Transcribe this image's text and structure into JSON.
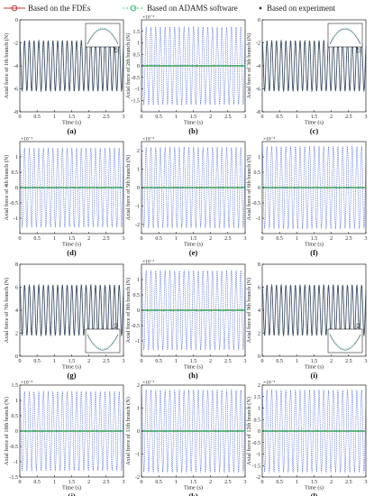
{
  "legend": {
    "items": [
      {
        "label": "Based on the FDEs",
        "color": "#c0392b",
        "marker": "circle"
      },
      {
        "label": "Based on ADAMS software",
        "color": "#2ecc71",
        "marker": "circle-dash"
      },
      {
        "label": "Based on experiment",
        "color": "#333333",
        "marker": "dot"
      }
    ]
  },
  "colors": {
    "fdes": "#c0392b",
    "adams": "#27ae60",
    "experiment": "#1f2a6b",
    "blue_dashed": "#3b5bdb"
  },
  "chart_data": [
    {
      "type": "line",
      "panel": "(a)",
      "ylabel": "Axial force of 1th branch (N)",
      "xlabel": "Time (s)",
      "xlim": [
        0,
        3
      ],
      "ylim": [
        -8,
        0
      ],
      "xticks": [
        0,
        0.5,
        1,
        1.5,
        2,
        2.5,
        3
      ],
      "yticks": [
        -8,
        -6,
        -4,
        -2,
        0
      ],
      "ytick_labels": [
        "-8",
        "-6",
        "-4",
        "-2",
        "0"
      ],
      "scale_label": "",
      "signal": {
        "mean": -4,
        "amp": 2.2,
        "freq": 7.3,
        "flat": false
      },
      "inset": true,
      "inset_pos": "top-right"
    },
    {
      "type": "line",
      "panel": "(b)",
      "ylabel": "Axial force of 2th branch (N)",
      "xlabel": "Time (s)",
      "xlim": [
        0,
        3
      ],
      "ylim": [
        -2,
        2
      ],
      "xticks": [
        0,
        0.5,
        1,
        1.5,
        2,
        2.5,
        3
      ],
      "yticks": [
        -1.5,
        -1,
        -0.5,
        0,
        0.5,
        1,
        1.5
      ],
      "ytick_labels": [
        "-1.5",
        "-1",
        "-0.5",
        "0",
        "0.5",
        "1",
        "1.5"
      ],
      "scale_label": "×10⁻³",
      "signal": {
        "mean": 0,
        "amp": 1.7,
        "freq": 7.3,
        "flat": true
      },
      "inset": false
    },
    {
      "type": "line",
      "panel": "(c)",
      "ylabel": "Axial force of 3th branch (N)",
      "xlabel": "Time (s)",
      "xlim": [
        0,
        3
      ],
      "ylim": [
        -8,
        0
      ],
      "xticks": [
        0,
        0.5,
        1,
        1.5,
        2,
        2.5,
        3
      ],
      "yticks": [
        -8,
        -6,
        -4,
        -2,
        0
      ],
      "ytick_labels": [
        "-8",
        "-6",
        "-4",
        "-2",
        "0"
      ],
      "scale_label": "",
      "signal": {
        "mean": -4,
        "amp": 2.2,
        "freq": 7.3,
        "flat": false
      },
      "inset": true,
      "inset_pos": "top-right"
    },
    {
      "type": "line",
      "panel": "(d)",
      "ylabel": "Axial force of 4th branch (N)",
      "xlabel": "Time (s)",
      "xlim": [
        0,
        3
      ],
      "ylim": [
        -1.5,
        1.5
      ],
      "xticks": [
        0,
        0.5,
        1,
        1.5,
        2,
        2.5,
        3
      ],
      "yticks": [
        -1,
        -0.5,
        0,
        0.5,
        1
      ],
      "ytick_labels": [
        "-1",
        "-0.5",
        "0",
        "0.5",
        "1"
      ],
      "scale_label": "×10⁻³",
      "signal": {
        "mean": 0,
        "amp": 1.3,
        "freq": 7.3,
        "flat": true
      },
      "inset": false
    },
    {
      "type": "line",
      "panel": "(e)",
      "ylabel": "Axial force of 5th branch (N)",
      "xlabel": "Time (s)",
      "xlim": [
        0,
        3
      ],
      "ylim": [
        -2.5,
        2.5
      ],
      "xticks": [
        0,
        0.5,
        1,
        1.5,
        2,
        2.5,
        3
      ],
      "yticks": [
        -2,
        -1,
        0,
        1,
        2
      ],
      "ytick_labels": [
        "-2",
        "-1",
        "0",
        "1",
        "2"
      ],
      "scale_label": "×10⁻³",
      "signal": {
        "mean": 0,
        "amp": 2.2,
        "freq": 7.3,
        "flat": true
      },
      "inset": false
    },
    {
      "type": "line",
      "panel": "(f)",
      "ylabel": "Axial force of 6th branch (N)",
      "xlabel": "Time (s)",
      "xlim": [
        0,
        3
      ],
      "ylim": [
        -1.5,
        1.5
      ],
      "xticks": [
        0,
        0.5,
        1,
        1.5,
        2,
        2.5,
        3
      ],
      "yticks": [
        -1,
        -0.5,
        0,
        0.5,
        1
      ],
      "ytick_labels": [
        "-1",
        "-0.5",
        "0",
        "0.5",
        "1"
      ],
      "scale_label": "×10⁻³",
      "signal": {
        "mean": 0,
        "amp": 1.35,
        "freq": 7.3,
        "flat": true
      },
      "inset": false
    },
    {
      "type": "line",
      "panel": "(g)",
      "ylabel": "Axial force of 7th branch (N)",
      "xlabel": "Time (s)",
      "xlim": [
        0,
        3
      ],
      "ylim": [
        0,
        8
      ],
      "xticks": [
        0,
        0.5,
        1,
        1.5,
        2,
        2.5,
        3
      ],
      "yticks": [
        0,
        2,
        4,
        6,
        8
      ],
      "ytick_labels": [
        "0",
        "2",
        "4",
        "6",
        "8"
      ],
      "scale_label": "",
      "signal": {
        "mean": 4,
        "amp": 2.2,
        "freq": 7.3,
        "flat": false
      },
      "inset": true,
      "inset_pos": "bottom-right"
    },
    {
      "type": "line",
      "panel": "(h)",
      "ylabel": "Axial force of 8th branch (N)",
      "xlabel": "Time (s)",
      "xlim": [
        0,
        3
      ],
      "ylim": [
        -1.5,
        1.5
      ],
      "xticks": [
        0,
        0.5,
        1,
        1.5,
        2,
        2.5,
        3
      ],
      "yticks": [
        -1,
        -0.5,
        0,
        0.5,
        1
      ],
      "ytick_labels": [
        "-1",
        "-0.5",
        "0",
        "0.5",
        "1"
      ],
      "scale_label": "×10⁻³",
      "signal": {
        "mean": 0,
        "amp": 1.3,
        "freq": 7.3,
        "flat": true
      },
      "inset": false
    },
    {
      "type": "line",
      "panel": "(i)",
      "ylabel": "Axial force of 9th branch (N)",
      "xlabel": "Time (s)",
      "xlim": [
        0,
        3
      ],
      "ylim": [
        0,
        8
      ],
      "xticks": [
        0,
        0.5,
        1,
        1.5,
        2,
        2.5,
        3
      ],
      "yticks": [
        0,
        2,
        4,
        6,
        8
      ],
      "ytick_labels": [
        "0",
        "2",
        "4",
        "6",
        "8"
      ],
      "scale_label": "",
      "signal": {
        "mean": 4,
        "amp": 2.2,
        "freq": 7.3,
        "flat": false
      },
      "inset": true,
      "inset_pos": "bottom-right"
    },
    {
      "type": "line",
      "panel": "(j)",
      "ylabel": "Axial force of 10th branch (N)",
      "xlabel": "Time (s)",
      "xlim": [
        0,
        3
      ],
      "ylim": [
        -1.5,
        1.5
      ],
      "xticks": [
        0,
        0.5,
        1,
        1.5,
        2,
        2.5,
        3
      ],
      "yticks": [
        -1.5,
        -1,
        -0.5,
        0,
        0.5,
        1,
        1.5
      ],
      "ytick_labels": [
        "-1.5",
        "-1",
        "-0.5",
        "0",
        "0.5",
        "1",
        "1.5"
      ],
      "scale_label": "×10⁻³",
      "signal": {
        "mean": 0,
        "amp": 1.3,
        "freq": 7.3,
        "flat": true
      },
      "inset": false
    },
    {
      "type": "line",
      "panel": "(k)",
      "ylabel": "Axial force of 11th branch (N)",
      "xlabel": "Time (s)",
      "xlim": [
        0,
        3
      ],
      "ylim": [
        -2,
        2
      ],
      "xticks": [
        0,
        0.5,
        1,
        1.5,
        2,
        2.5,
        3
      ],
      "yticks": [
        -2,
        -1,
        0,
        1,
        2
      ],
      "ytick_labels": [
        "-2",
        "-1",
        "0",
        "1",
        "2"
      ],
      "scale_label": "×10⁻³",
      "signal": {
        "mean": 0,
        "amp": 1.8,
        "freq": 7.3,
        "flat": true
      },
      "inset": false
    },
    {
      "type": "line",
      "panel": "(l)",
      "ylabel": "Axial force of 12th branch (N)",
      "xlabel": "Time (s)",
      "xlim": [
        0,
        3
      ],
      "ylim": [
        -2,
        2
      ],
      "xticks": [
        0,
        0.5,
        1,
        1.5,
        2,
        2.5,
        3
      ],
      "yticks": [
        -2,
        -1.5,
        -1,
        -0.5,
        0,
        0.5,
        1,
        1.5,
        2
      ],
      "ytick_labels": [
        "-2",
        "-1.5",
        "-1",
        "-0.5",
        "0",
        "0.5",
        "1",
        "1.5",
        "2"
      ],
      "scale_label": "×10⁻³",
      "signal": {
        "mean": 0,
        "amp": 1.8,
        "freq": 7.3,
        "flat": true
      },
      "inset": false
    }
  ]
}
